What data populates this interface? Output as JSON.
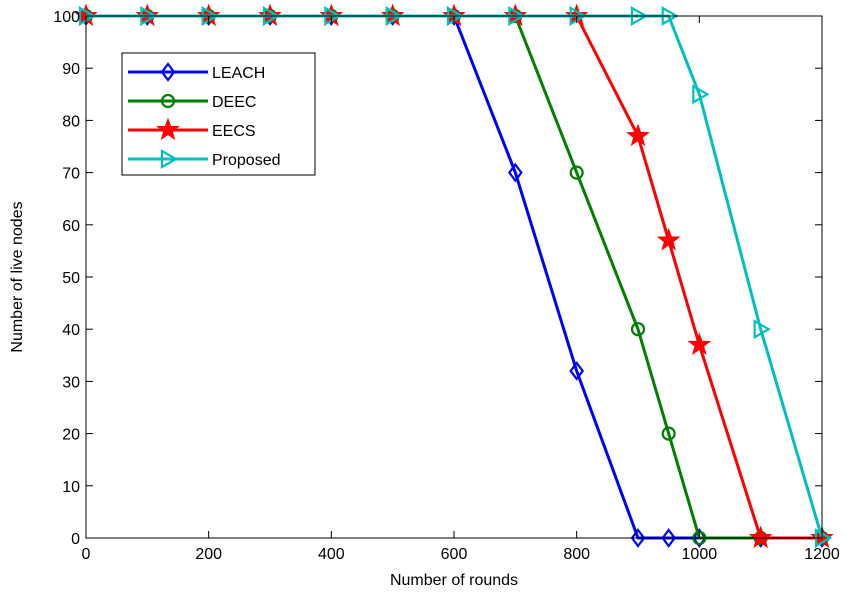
{
  "chart_data": {
    "type": "line",
    "title": "",
    "xlabel": "Number of rounds",
    "ylabel": "Number of live nodes",
    "xlim": [
      0,
      1200
    ],
    "ylim": [
      0,
      100
    ],
    "xticks": [
      0,
      200,
      400,
      600,
      800,
      1000,
      1200
    ],
    "yticks": [
      0,
      10,
      20,
      30,
      40,
      50,
      60,
      70,
      80,
      90,
      100
    ],
    "grid": false,
    "legend_position": "top-left",
    "series": [
      {
        "name": "LEACH",
        "color": "#0000ff",
        "marker": "diamond",
        "x": [
          0,
          100,
          200,
          300,
          400,
          500,
          600,
          700,
          800,
          900,
          950,
          1000,
          1100,
          1200
        ],
        "y": [
          100,
          100,
          100,
          100,
          100,
          100,
          100,
          70,
          32,
          0,
          0,
          0,
          0,
          0
        ]
      },
      {
        "name": "DEEC",
        "color": "#007f00",
        "marker": "circle",
        "x": [
          0,
          100,
          200,
          300,
          400,
          500,
          600,
          700,
          800,
          900,
          950,
          1000,
          1100,
          1200
        ],
        "y": [
          100,
          100,
          100,
          100,
          100,
          100,
          100,
          100,
          70,
          40,
          20,
          0,
          0,
          0
        ]
      },
      {
        "name": "EECS",
        "color": "#ff0000",
        "marker": "star",
        "x": [
          0,
          100,
          200,
          300,
          400,
          500,
          600,
          700,
          800,
          900,
          950,
          1000,
          1100,
          1200
        ],
        "y": [
          100,
          100,
          100,
          100,
          100,
          100,
          100,
          100,
          100,
          77,
          57,
          37,
          0,
          0
        ]
      },
      {
        "name": "Proposed",
        "color": "#00bfbf",
        "marker": "triangle-right",
        "x": [
          0,
          100,
          200,
          300,
          400,
          500,
          600,
          700,
          800,
          900,
          950,
          1000,
          1100,
          1200
        ],
        "y": [
          100,
          100,
          100,
          100,
          100,
          100,
          100,
          100,
          100,
          100,
          100,
          85,
          40,
          0
        ]
      }
    ]
  }
}
